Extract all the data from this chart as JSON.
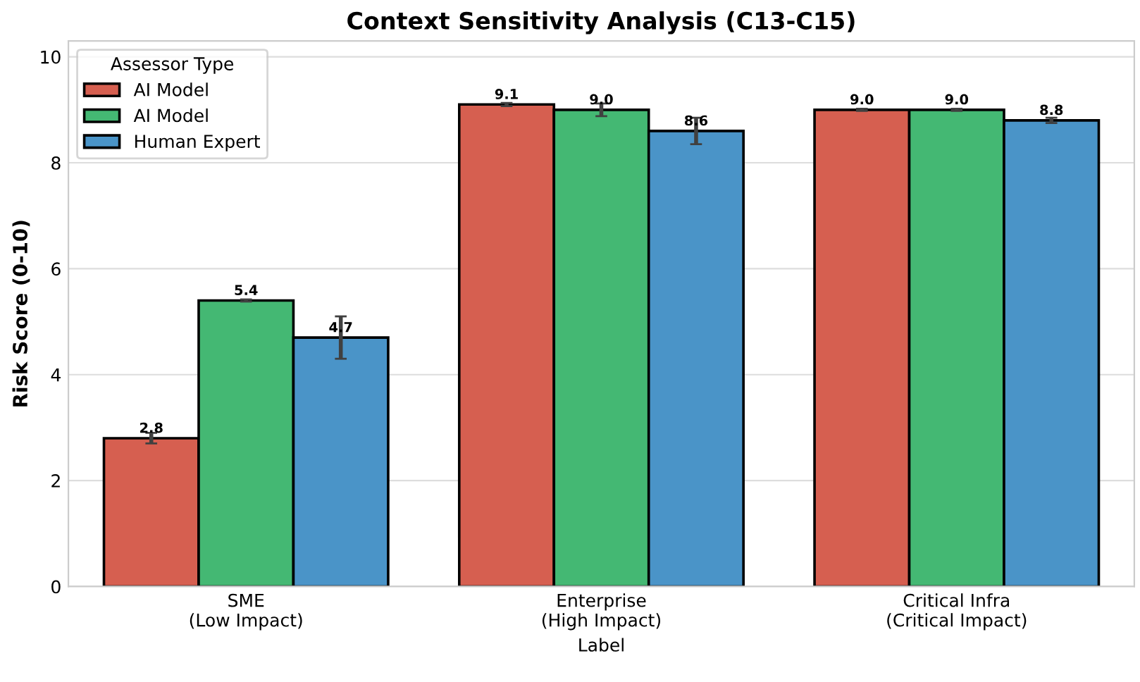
{
  "chart_data": {
    "type": "bar",
    "title": "Context Sensitivity Analysis (C13-C15)",
    "xlabel": "Label",
    "ylabel": "Risk Score (0-10)",
    "legend_title": "Assessor Type",
    "categories": [
      "SME\n(Low Impact)",
      "Enterprise\n(High Impact)",
      "Critical Infra\n(Critical Impact)"
    ],
    "series": [
      {
        "name": "AI Model",
        "color": "#d65f50",
        "values": [
          2.8,
          9.1,
          9.0
        ],
        "value_labels": [
          "2.8",
          "9.1",
          "9.0"
        ],
        "errors": [
          0.1,
          0.03,
          0.02
        ]
      },
      {
        "name": "AI Model",
        "color": "#44b873",
        "values": [
          5.4,
          9.0,
          9.0
        ],
        "value_labels": [
          "5.4",
          "9.0",
          "9.0"
        ],
        "errors": [
          0.02,
          0.12,
          0.02
        ]
      },
      {
        "name": "Human Expert",
        "color": "#4a94c8",
        "values": [
          4.7,
          8.6,
          8.8
        ],
        "value_labels": [
          "4.7",
          "8.6",
          "8.8"
        ],
        "errors": [
          0.4,
          0.25,
          0.05
        ]
      }
    ],
    "ylim": [
      0,
      10.3
    ],
    "yticks": [
      0,
      2,
      4,
      6,
      8,
      10
    ],
    "grid": "y",
    "legend": "top left"
  }
}
